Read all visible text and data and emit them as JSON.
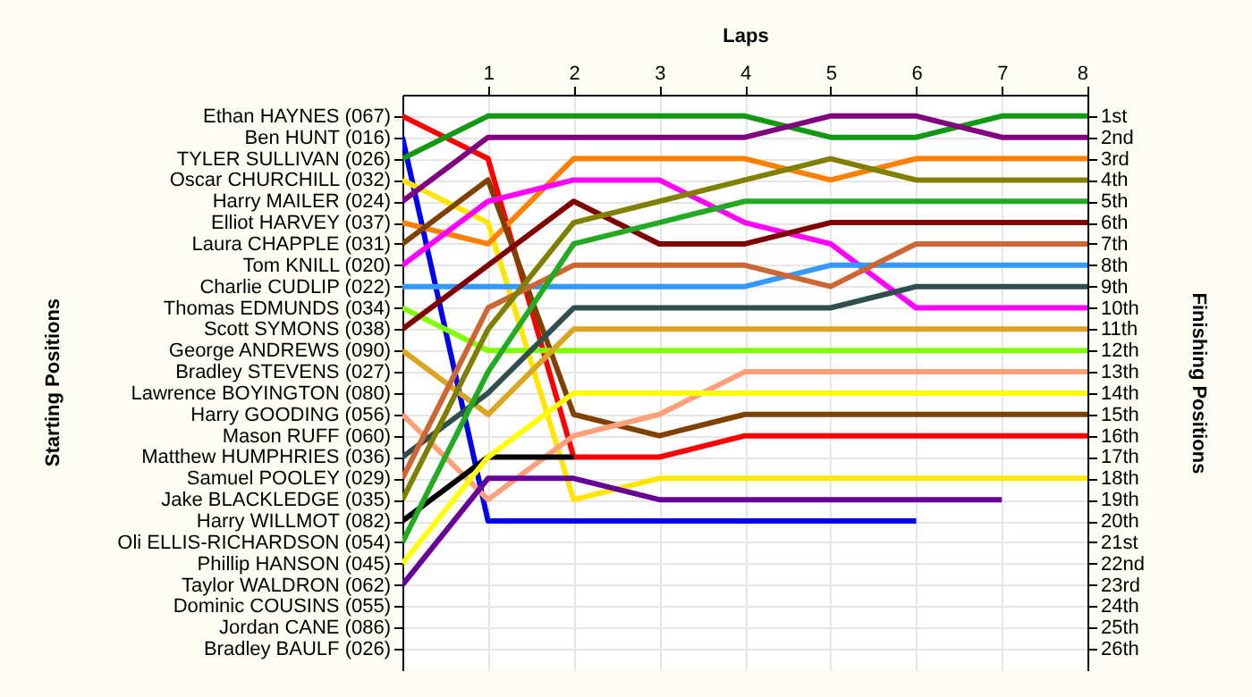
{
  "chart_data": {
    "type": "line",
    "xlabel": "Laps",
    "ylabel": "Finishing Positions",
    "annotations": [
      "Starting Positions"
    ],
    "x": [
      0,
      1,
      2,
      3,
      4,
      5,
      6,
      7,
      8
    ],
    "xlim": [
      0,
      8
    ],
    "xticks": [
      1,
      2,
      3,
      4,
      5,
      6,
      7,
      8
    ],
    "ylim": [
      27,
      0
    ],
    "y2_categories": [
      "Ethan HAYNES (067)",
      "Ben HUNT (016)",
      "TYLER SULLIVAN (026)",
      "Oscar CHURCHILL (032)",
      "Harry MAILER (024)",
      "Elliot HARVEY (037)",
      "Laura CHAPPLE (031)",
      "Tom KNILL (020)",
      "Charlie CUDLIP (022)",
      "Thomas EDMUNDS (034)",
      "Scott SYMONS (038)",
      "George ANDREWS (090)",
      "Bradley STEVENS (027)",
      "Lawrence BOYINGTON (080)",
      "Harry GOODING (056)",
      "Mason RUFF (060)",
      "Matthew HUMPHRIES (036)",
      "Samuel POOLEY (029)",
      "Jake BLACKLEDGE (035)",
      "Harry WILLMOT (082)",
      "Oli ELLIS-RICHARDSON (054)",
      "Phillip HANSON (045)",
      "Taylor WALDRON (062)",
      "Dominic COUSINS (055)",
      "Jordan CANE (086)",
      "Bradley BAULF (026)"
    ],
    "yticks": [
      {
        "value": 1,
        "label": "1st"
      },
      {
        "value": 2,
        "label": "2nd"
      },
      {
        "value": 3,
        "label": "3rd"
      },
      {
        "value": 4,
        "label": "4th"
      },
      {
        "value": 5,
        "label": "5th"
      },
      {
        "value": 6,
        "label": "6th"
      },
      {
        "value": 7,
        "label": "7th"
      },
      {
        "value": 8,
        "label": "8th"
      },
      {
        "value": 9,
        "label": "9th"
      },
      {
        "value": 10,
        "label": "10th"
      },
      {
        "value": 11,
        "label": "11th"
      },
      {
        "value": 12,
        "label": "12th"
      },
      {
        "value": 13,
        "label": "13th"
      },
      {
        "value": 14,
        "label": "14th"
      },
      {
        "value": 15,
        "label": "15th"
      },
      {
        "value": 16,
        "label": "16th"
      },
      {
        "value": 17,
        "label": "17th"
      },
      {
        "value": 18,
        "label": "18th"
      },
      {
        "value": 19,
        "label": "19th"
      },
      {
        "value": 20,
        "label": "20th"
      },
      {
        "value": 21,
        "label": "21st"
      },
      {
        "value": 22,
        "label": "22nd"
      },
      {
        "value": 23,
        "label": "23rd"
      },
      {
        "value": 24,
        "label": "24th"
      },
      {
        "value": 25,
        "label": "25th"
      },
      {
        "value": 26,
        "label": "26th"
      }
    ],
    "grid": true,
    "marker": "none",
    "line_style": "solid",
    "series": [
      {
        "color": "#ff0000",
        "values": [
          1,
          3,
          17,
          17,
          16,
          16,
          16,
          16,
          16
        ]
      },
      {
        "color": "#0000ee",
        "values": [
          2,
          20,
          20,
          20,
          20,
          20,
          20,
          null,
          null
        ]
      },
      {
        "color": "#119911",
        "values": [
          3,
          1,
          1,
          1,
          1,
          2,
          2,
          1,
          1
        ]
      },
      {
        "color": "#ffe600",
        "values": [
          4,
          6,
          19,
          18,
          18,
          18,
          18,
          18,
          18
        ]
      },
      {
        "color": "#800080",
        "values": [
          5,
          2,
          2,
          2,
          2,
          1,
          1,
          2,
          2
        ]
      },
      {
        "color": "#ff8000",
        "values": [
          6,
          7,
          3,
          3,
          3,
          4,
          3,
          3,
          3
        ]
      },
      {
        "color": "#804000",
        "values": [
          7,
          4,
          15,
          16,
          15,
          15,
          15,
          15,
          15
        ]
      },
      {
        "color": "#ff00ff",
        "values": [
          8,
          5,
          4,
          4,
          6,
          7,
          10,
          10,
          10
        ]
      },
      {
        "color": "#3399ff",
        "values": [
          9,
          9,
          9,
          9,
          9,
          8,
          8,
          8,
          8
        ]
      },
      {
        "color": "#80ff00",
        "values": [
          10,
          12,
          12,
          12,
          12,
          12,
          12,
          12,
          12
        ]
      },
      {
        "color": "#800000",
        "values": [
          11,
          8,
          5,
          7,
          7,
          6,
          6,
          6,
          6
        ]
      },
      {
        "color": "#daa520",
        "values": [
          12,
          15,
          11,
          11,
          11,
          11,
          11,
          11,
          11
        ]
      },
      {
        "color": "#ffa07a",
        "values": [
          15,
          19,
          16,
          15,
          13,
          13,
          13,
          13,
          13
        ]
      },
      {
        "color": "#2f4f4f",
        "values": [
          17,
          14,
          10,
          10,
          10,
          10,
          9,
          9,
          9
        ]
      },
      {
        "color": "#cc6633",
        "values": [
          18,
          10,
          8,
          8,
          8,
          9,
          7,
          7,
          7
        ]
      },
      {
        "color": "#808000",
        "values": [
          19,
          11,
          6,
          5,
          4,
          3,
          4,
          4,
          4
        ]
      },
      {
        "color": "#000000",
        "values": [
          20,
          17,
          17,
          null,
          null,
          null,
          null,
          null,
          null
        ]
      },
      {
        "color": "#22aa22",
        "values": [
          21,
          13,
          7,
          6,
          5,
          5,
          5,
          5,
          5
        ]
      },
      {
        "color": "#ffff00",
        "values": [
          22,
          17,
          14,
          14,
          14,
          14,
          14,
          14,
          14
        ]
      },
      {
        "color": "#660099",
        "values": [
          23,
          18,
          18,
          19,
          19,
          19,
          19,
          19,
          null
        ]
      }
    ]
  }
}
